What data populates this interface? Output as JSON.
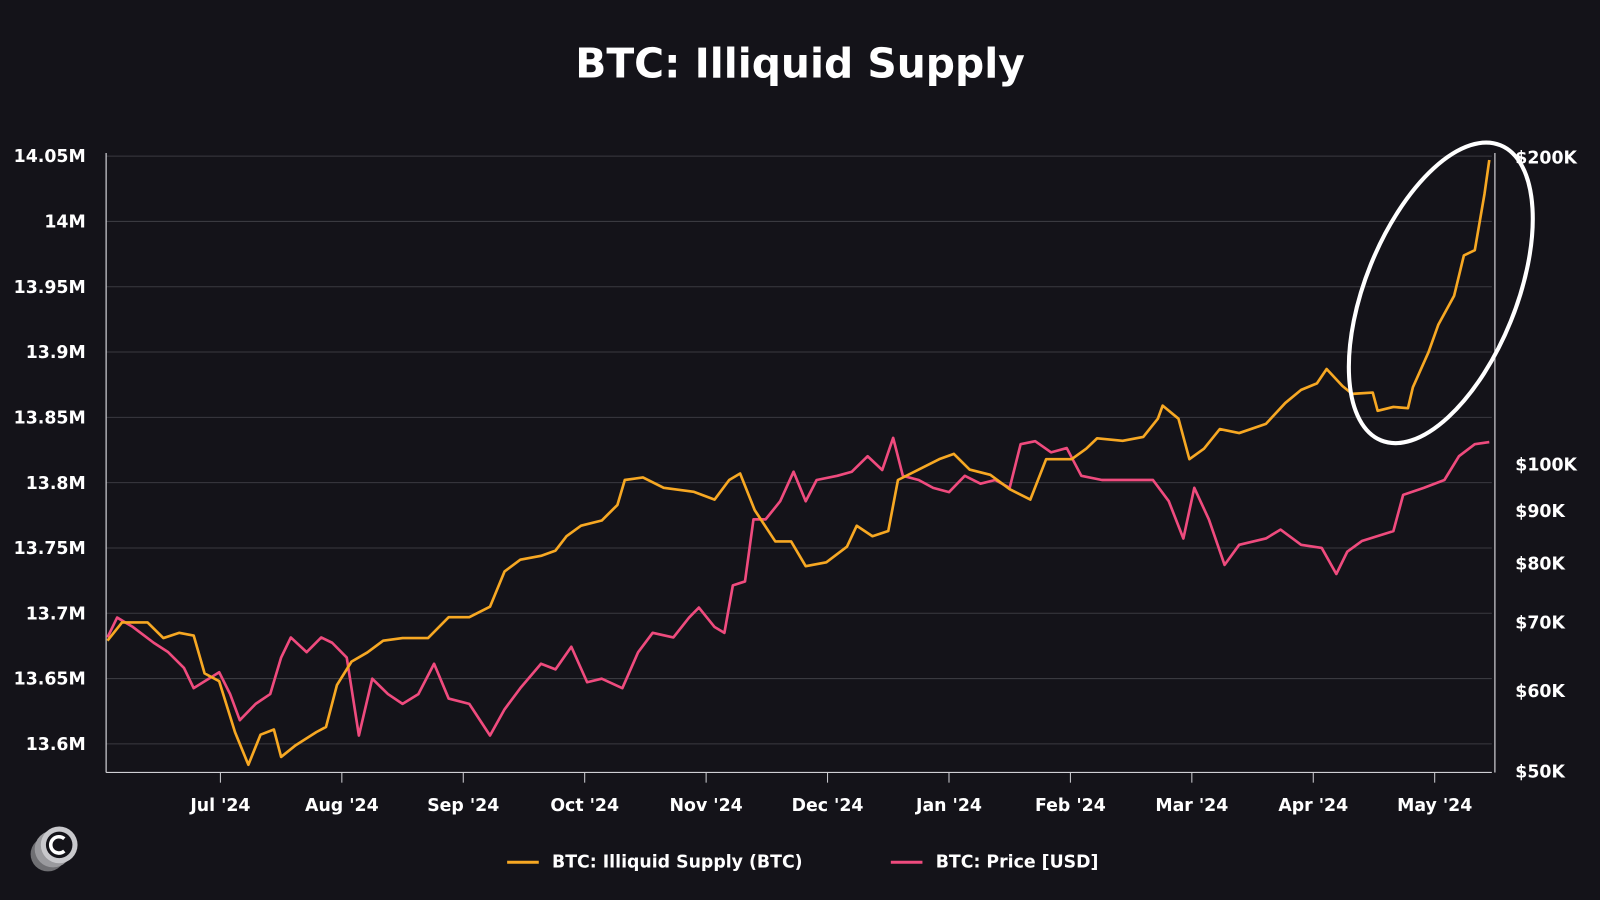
{
  "chart_data": {
    "type": "line",
    "title": "BTC: Illiquid Supply",
    "x_unit": "months since Jun '24 (Jul '24 = 1)",
    "xlim": [
      0.07,
      11.45
    ],
    "x_ticks": [
      {
        "x": 1,
        "label": "Jul '24"
      },
      {
        "x": 2,
        "label": "Aug '24"
      },
      {
        "x": 3,
        "label": "Sep '24"
      },
      {
        "x": 4,
        "label": "Oct '24"
      },
      {
        "x": 5,
        "label": "Nov '24"
      },
      {
        "x": 6,
        "label": "Dec '24"
      },
      {
        "x": 7,
        "label": "Jan '24"
      },
      {
        "x": 8,
        "label": "Feb '24"
      },
      {
        "x": 9,
        "label": "Mar '24"
      },
      {
        "x": 10,
        "label": "Apr '24"
      },
      {
        "x": 11,
        "label": "May '24"
      }
    ],
    "left_axis": {
      "scale": "linear",
      "ylim": [
        13.58,
        14.05
      ],
      "ticks": [
        {
          "v": 14.05,
          "label": "14.05M"
        },
        {
          "v": 14.0,
          "label": "14M"
        },
        {
          "v": 13.95,
          "label": "13.95M"
        },
        {
          "v": 13.9,
          "label": "13.9M"
        },
        {
          "v": 13.85,
          "label": "13.85M"
        },
        {
          "v": 13.8,
          "label": "13.8M"
        },
        {
          "v": 13.75,
          "label": "13.75M"
        },
        {
          "v": 13.7,
          "label": "13.7M"
        },
        {
          "v": 13.65,
          "label": "13.65M"
        },
        {
          "v": 13.6,
          "label": "13.6M"
        }
      ]
    },
    "right_axis": {
      "scale": "log",
      "ylim": [
        50000,
        200000
      ],
      "ticks": [
        {
          "v": 200000,
          "label": "$200K"
        },
        {
          "v": 100000,
          "label": "$100K"
        },
        {
          "v": 90000,
          "label": "$90K"
        },
        {
          "v": 80000,
          "label": "$80K"
        },
        {
          "v": 70000,
          "label": "$70K"
        },
        {
          "v": 60000,
          "label": "$60K"
        },
        {
          "v": 50000,
          "label": "$50K"
        }
      ]
    },
    "grid": true,
    "legend_position": "bottom",
    "annotation": "ellipse highlighting final surge of illiquid supply",
    "series": [
      {
        "name": "BTC: Illiquid Supply (BTC)",
        "color": "#f7a823",
        "axis": "left",
        "unit": "M BTC",
        "points": [
          [
            0.07,
            13.679
          ],
          [
            0.19,
            13.693
          ],
          [
            0.4,
            13.693
          ],
          [
            0.53,
            13.681
          ],
          [
            0.66,
            13.685
          ],
          [
            0.78,
            13.683
          ],
          [
            0.87,
            13.654
          ],
          [
            0.99,
            13.648
          ],
          [
            1.12,
            13.609
          ],
          [
            1.23,
            13.584
          ],
          [
            1.33,
            13.607
          ],
          [
            1.44,
            13.611
          ],
          [
            1.5,
            13.59
          ],
          [
            1.62,
            13.599
          ],
          [
            1.79,
            13.609
          ],
          [
            1.87,
            13.613
          ],
          [
            1.96,
            13.645
          ],
          [
            2.08,
            13.663
          ],
          [
            2.21,
            13.67
          ],
          [
            2.34,
            13.679
          ],
          [
            2.5,
            13.681
          ],
          [
            2.71,
            13.681
          ],
          [
            2.88,
            13.697
          ],
          [
            3.05,
            13.697
          ],
          [
            3.22,
            13.705
          ],
          [
            3.34,
            13.732
          ],
          [
            3.47,
            13.741
          ],
          [
            3.64,
            13.744
          ],
          [
            3.76,
            13.748
          ],
          [
            3.85,
            13.759
          ],
          [
            3.97,
            13.767
          ],
          [
            4.14,
            13.771
          ],
          [
            4.27,
            13.783
          ],
          [
            4.33,
            13.802
          ],
          [
            4.48,
            13.804
          ],
          [
            4.65,
            13.796
          ],
          [
            4.9,
            13.793
          ],
          [
            5.07,
            13.787
          ],
          [
            5.19,
            13.802
          ],
          [
            5.28,
            13.807
          ],
          [
            5.4,
            13.779
          ],
          [
            5.57,
            13.755
          ],
          [
            5.7,
            13.755
          ],
          [
            5.82,
            13.736
          ],
          [
            5.99,
            13.739
          ],
          [
            6.16,
            13.751
          ],
          [
            6.24,
            13.767
          ],
          [
            6.37,
            13.759
          ],
          [
            6.5,
            13.763
          ],
          [
            6.58,
            13.802
          ],
          [
            6.75,
            13.81
          ],
          [
            6.92,
            13.818
          ],
          [
            7.04,
            13.822
          ],
          [
            7.17,
            13.81
          ],
          [
            7.34,
            13.806
          ],
          [
            7.5,
            13.795
          ],
          [
            7.67,
            13.787
          ],
          [
            7.8,
            13.818
          ],
          [
            8.01,
            13.818
          ],
          [
            8.13,
            13.826
          ],
          [
            8.22,
            13.834
          ],
          [
            8.43,
            13.832
          ],
          [
            8.6,
            13.835
          ],
          [
            8.72,
            13.849
          ],
          [
            8.76,
            13.859
          ],
          [
            8.89,
            13.849
          ],
          [
            8.98,
            13.818
          ],
          [
            9.1,
            13.826
          ],
          [
            9.23,
            13.841
          ],
          [
            9.39,
            13.838
          ],
          [
            9.61,
            13.845
          ],
          [
            9.77,
            13.861
          ],
          [
            9.9,
            13.871
          ],
          [
            10.03,
            13.876
          ],
          [
            10.11,
            13.887
          ],
          [
            10.24,
            13.874
          ],
          [
            10.32,
            13.868
          ],
          [
            10.49,
            13.869
          ],
          [
            10.53,
            13.855
          ],
          [
            10.66,
            13.858
          ],
          [
            10.78,
            13.857
          ],
          [
            10.82,
            13.873
          ],
          [
            10.95,
            13.9
          ],
          [
            11.03,
            13.921
          ],
          [
            11.16,
            13.943
          ],
          [
            11.24,
            13.974
          ],
          [
            11.33,
            13.978
          ],
          [
            11.41,
            14.021
          ],
          [
            11.45,
            14.047
          ]
        ]
      },
      {
        "name": "BTC: Price [USD]",
        "color": "#ef4b7e",
        "axis": "right",
        "unit": "USD",
        "points": [
          [
            0.07,
            67500
          ],
          [
            0.15,
            70600
          ],
          [
            0.28,
            69100
          ],
          [
            0.45,
            66700
          ],
          [
            0.57,
            65300
          ],
          [
            0.7,
            63000
          ],
          [
            0.78,
            60200
          ],
          [
            0.99,
            62400
          ],
          [
            1.08,
            59400
          ],
          [
            1.16,
            56000
          ],
          [
            1.29,
            58100
          ],
          [
            1.41,
            59400
          ],
          [
            1.5,
            64500
          ],
          [
            1.58,
            67500
          ],
          [
            1.71,
            65300
          ],
          [
            1.83,
            67500
          ],
          [
            1.92,
            66700
          ],
          [
            2.04,
            64500
          ],
          [
            2.14,
            54100
          ],
          [
            2.25,
            61500
          ],
          [
            2.38,
            59400
          ],
          [
            2.5,
            58100
          ],
          [
            2.63,
            59400
          ],
          [
            2.76,
            63600
          ],
          [
            2.88,
            58800
          ],
          [
            3.05,
            58100
          ],
          [
            3.22,
            54100
          ],
          [
            3.34,
            57400
          ],
          [
            3.47,
            60200
          ],
          [
            3.64,
            63600
          ],
          [
            3.76,
            62800
          ],
          [
            3.89,
            66100
          ],
          [
            4.02,
            61000
          ],
          [
            4.14,
            61500
          ],
          [
            4.31,
            60200
          ],
          [
            4.44,
            65300
          ],
          [
            4.56,
            68200
          ],
          [
            4.73,
            67500
          ],
          [
            4.86,
            70600
          ],
          [
            4.94,
            72200
          ],
          [
            5.07,
            69100
          ],
          [
            5.15,
            68200
          ],
          [
            5.22,
            75900
          ],
          [
            5.32,
            76600
          ],
          [
            5.39,
            88100
          ],
          [
            5.49,
            88100
          ],
          [
            5.61,
            91800
          ],
          [
            5.72,
            98100
          ],
          [
            5.82,
            91800
          ],
          [
            5.91,
            96300
          ],
          [
            6.08,
            97200
          ],
          [
            6.2,
            98100
          ],
          [
            6.33,
            101600
          ],
          [
            6.45,
            98500
          ],
          [
            6.54,
            105900
          ],
          [
            6.62,
            97200
          ],
          [
            6.75,
            96300
          ],
          [
            6.87,
            94600
          ],
          [
            7.0,
            93700
          ],
          [
            7.13,
            97200
          ],
          [
            7.26,
            95500
          ],
          [
            7.38,
            96300
          ],
          [
            7.5,
            94600
          ],
          [
            7.59,
            104400
          ],
          [
            7.71,
            105100
          ],
          [
            7.84,
            102500
          ],
          [
            7.97,
            103500
          ],
          [
            8.09,
            97200
          ],
          [
            8.26,
            96300
          ],
          [
            8.43,
            96300
          ],
          [
            8.68,
            96300
          ],
          [
            8.81,
            91800
          ],
          [
            8.93,
            84400
          ],
          [
            9.02,
            94600
          ],
          [
            9.14,
            88100
          ],
          [
            9.27,
            79500
          ],
          [
            9.39,
            83200
          ],
          [
            9.61,
            84400
          ],
          [
            9.73,
            86100
          ],
          [
            9.9,
            83200
          ],
          [
            10.07,
            82600
          ],
          [
            10.19,
            77900
          ],
          [
            10.28,
            81900
          ],
          [
            10.4,
            83900
          ],
          [
            10.66,
            85800
          ],
          [
            10.74,
            93100
          ],
          [
            10.91,
            94600
          ],
          [
            11.08,
            96300
          ],
          [
            11.2,
            101600
          ],
          [
            11.33,
            104400
          ],
          [
            11.45,
            104900
          ]
        ]
      }
    ]
  }
}
